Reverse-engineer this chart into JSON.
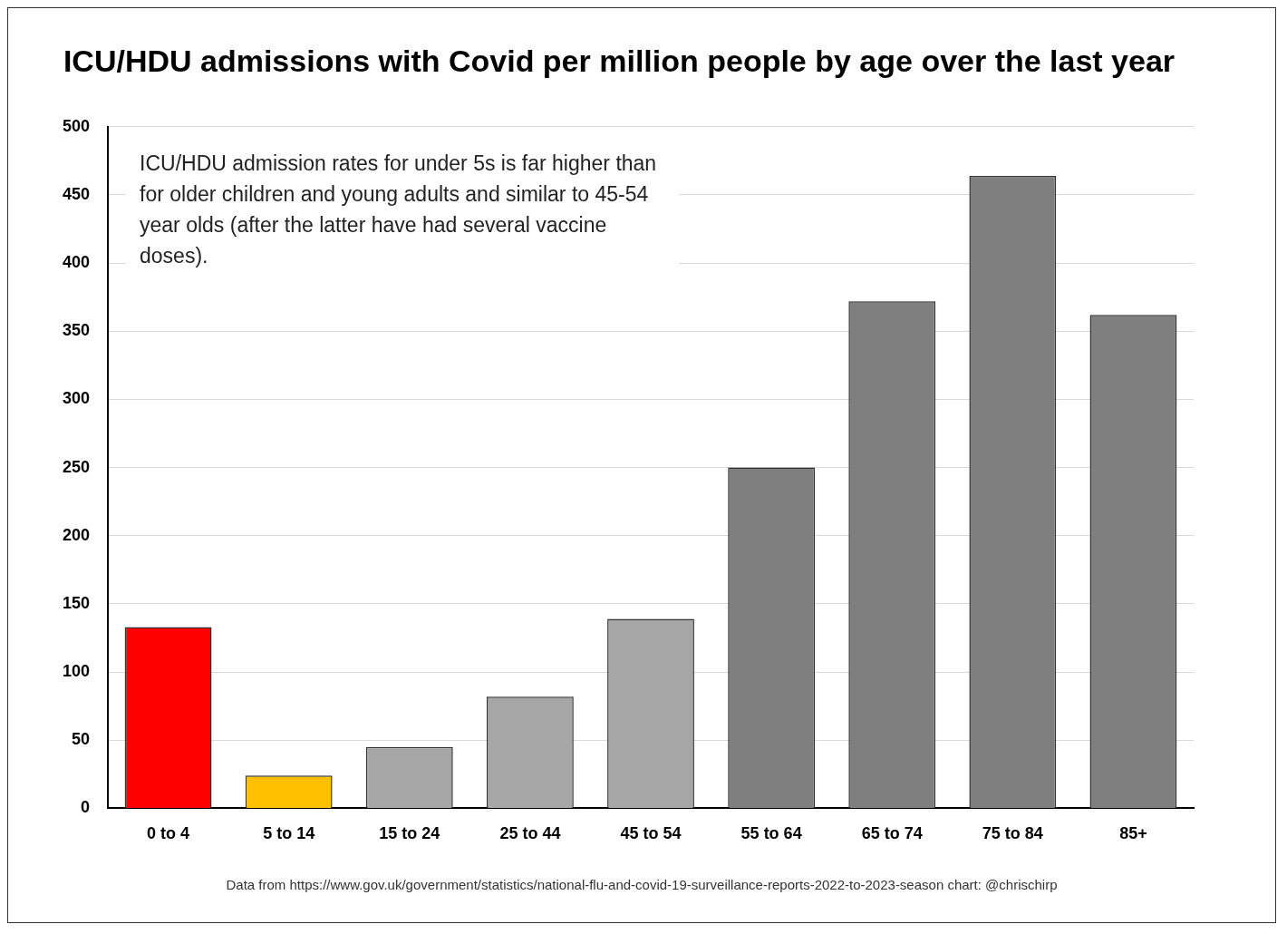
{
  "chart_data": {
    "type": "bar",
    "title": "ICU/HDU admissions with Covid per million people by age over the last year",
    "categories": [
      "0 to 4",
      "5 to 14",
      "15 to 24",
      "25 to 44",
      "45 to 54",
      "55 to 64",
      "65 to 74",
      "75 to 84",
      "85+"
    ],
    "values": [
      133,
      24,
      45,
      82,
      139,
      250,
      372,
      464,
      362
    ],
    "colors": [
      "#ff0000",
      "#ffc000",
      "#a6a6a6",
      "#a6a6a6",
      "#a6a6a6",
      "#7f7f7f",
      "#7f7f7f",
      "#7f7f7f",
      "#7f7f7f"
    ],
    "ylim": [
      0,
      500
    ],
    "yticks": [
      0,
      50,
      100,
      150,
      200,
      250,
      300,
      350,
      400,
      450,
      500
    ],
    "grid": "y",
    "legend": false,
    "annotations": [
      "ICU/HDU admission rates for under 5s is far higher than for older children and young adults and similar to 45-54 year olds (after the latter have had several vaccine doses).",
      "Data from https://www.gov.uk/government/statistics/national-flu-and-covid-19-surveillance-reports-2022-to-2023-season chart: @chrischirp"
    ]
  }
}
